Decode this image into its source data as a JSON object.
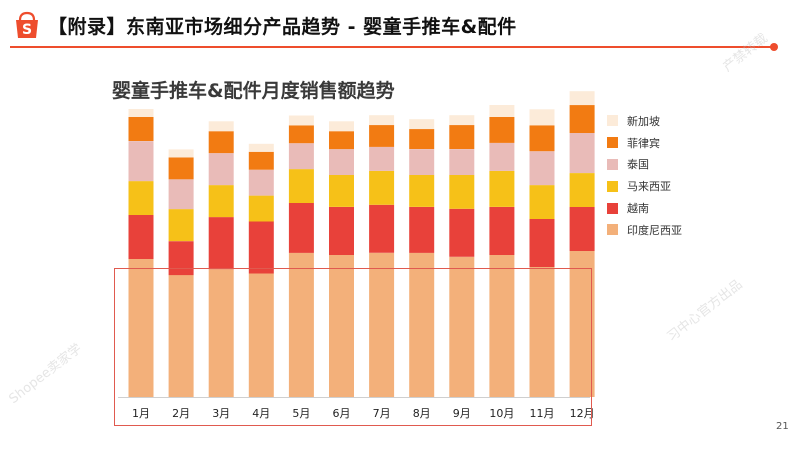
{
  "slide": {
    "title": "【附录】东南亚市场细分产品趋势 - 婴童手推车&配件",
    "page_number": "21",
    "watermarks": [
      "Shopee卖家学",
      "习中心官方出品",
      "产禁转载",
      "Shopee卖家学"
    ]
  },
  "colors": {
    "accent": "#ee4d2d",
    "highlight_box": "#e05a4f"
  },
  "chart_data": {
    "type": "bar",
    "stacked": true,
    "title": "婴童手推车&配件月度销售额趋势",
    "categories": [
      "1月",
      "2月",
      "3月",
      "4月",
      "5月",
      "6月",
      "7月",
      "8月",
      "9月",
      "10月",
      "11月",
      "12月"
    ],
    "xlabel": "",
    "ylabel": "",
    "y_axis_visible": false,
    "ylim": [
      0,
      100
    ],
    "grid": false,
    "legend_position": "right",
    "series": [
      {
        "name": "印度尼西亚",
        "color": "#f3b07a",
        "values": [
          44.8,
          39.6,
          41.5,
          40.1,
          46.8,
          46.1,
          46.8,
          46.8,
          45.5,
          46.1,
          42.2,
          47.4
        ]
      },
      {
        "name": "越南",
        "color": "#e8413a",
        "values": [
          14.3,
          11.0,
          16.9,
          16.9,
          16.2,
          15.6,
          15.6,
          14.9,
          15.6,
          15.6,
          15.6,
          14.3
        ]
      },
      {
        "name": "马来西亚",
        "color": "#f6c118",
        "values": [
          11.0,
          10.4,
          10.4,
          8.4,
          11.0,
          10.4,
          11.0,
          10.4,
          11.0,
          11.7,
          11.0,
          11.0
        ]
      },
      {
        "name": "泰国",
        "color": "#e9bbb8",
        "values": [
          13.0,
          9.7,
          10.4,
          8.4,
          8.4,
          8.4,
          7.8,
          8.4,
          8.4,
          9.1,
          11.0,
          13.0
        ]
      },
      {
        "name": "菲律宾",
        "color": "#f27b12",
        "values": [
          7.8,
          7.1,
          7.1,
          5.8,
          5.8,
          5.8,
          7.1,
          6.5,
          7.8,
          8.4,
          8.4,
          9.1
        ]
      },
      {
        "name": "新加坡",
        "color": "#fcebd9",
        "values": [
          2.6,
          2.6,
          3.2,
          2.6,
          3.2,
          3.2,
          3.2,
          3.2,
          3.2,
          3.9,
          5.2,
          4.5
        ]
      }
    ],
    "legend_order": [
      "新加坡",
      "菲律宾",
      "泰国",
      "马来西亚",
      "越南",
      "印度尼西亚"
    ],
    "annotation": "highlight box around the 印度尼西亚 segment across all months"
  }
}
